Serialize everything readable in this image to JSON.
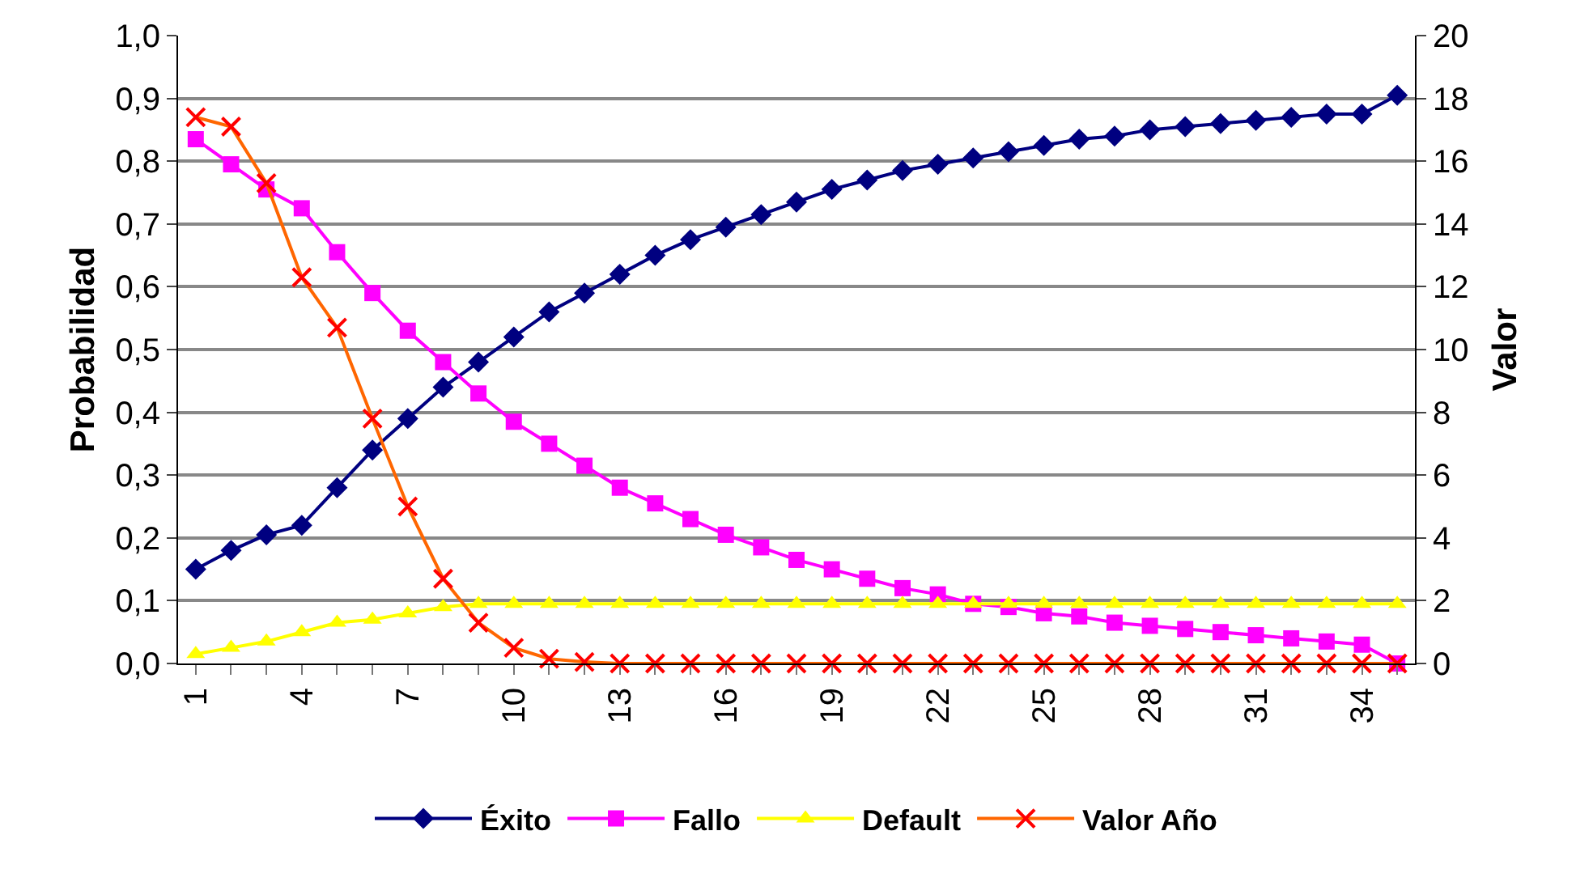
{
  "chart_data": {
    "type": "line",
    "ylabel": "Probabilidad",
    "y2label": "Valor",
    "categories": [
      "1",
      null,
      null,
      "4",
      null,
      null,
      "7",
      null,
      null,
      "10",
      null,
      null,
      "13",
      null,
      null,
      "16",
      null,
      null,
      "19",
      null,
      null,
      "22",
      null,
      null,
      "25",
      null,
      null,
      "28",
      null,
      null,
      "31",
      null,
      null,
      "34",
      null
    ],
    "series": [
      {
        "name": "Éxito",
        "color": "#000080",
        "marker": "diamond",
        "values": [
          0.15,
          0.18,
          0.205,
          0.22,
          0.28,
          0.34,
          0.39,
          0.44,
          0.48,
          0.52,
          0.56,
          0.59,
          0.62,
          0.65,
          0.675,
          0.695,
          0.715,
          0.735,
          0.755,
          0.77,
          0.785,
          0.795,
          0.805,
          0.815,
          0.825,
          0.835,
          0.84,
          0.85,
          0.855,
          0.86,
          0.865,
          0.87,
          0.875,
          0.875,
          0.905
        ]
      },
      {
        "name": "Fallo",
        "color": "#ff00ff",
        "marker": "square",
        "values": [
          0.835,
          0.795,
          0.755,
          0.725,
          0.655,
          0.59,
          0.53,
          0.48,
          0.43,
          0.385,
          0.35,
          0.315,
          0.28,
          0.255,
          0.23,
          0.205,
          0.185,
          0.165,
          0.15,
          0.135,
          0.12,
          0.11,
          0.095,
          0.09,
          0.08,
          0.075,
          0.065,
          0.06,
          0.055,
          0.05,
          0.045,
          0.04,
          0.035,
          0.03,
          0
        ]
      },
      {
        "name": "Default",
        "color": "#ffff00",
        "marker": "triangle",
        "values": [
          0.015,
          0.025,
          0.035,
          0.05,
          0.065,
          0.07,
          0.08,
          0.09,
          0.095,
          0.095,
          0.095,
          0.095,
          0.095,
          0.095,
          0.095,
          0.095,
          0.095,
          0.095,
          0.095,
          0.095,
          0.095,
          0.095,
          0.095,
          0.095,
          0.095,
          0.095,
          0.095,
          0.095,
          0.095,
          0.095,
          0.095,
          0.095,
          0.095,
          0.095,
          0.095
        ]
      },
      {
        "name": "Valor Año",
        "color": "#ff6600",
        "marker": "cross",
        "axis": "y2",
        "values": [
          17.4,
          17.1,
          15.3,
          12.3,
          10.7,
          7.8,
          5.0,
          2.7,
          1.3,
          0.5,
          0.15,
          0.05,
          0,
          0,
          0,
          0,
          0,
          0,
          0,
          0,
          0,
          0,
          0,
          0,
          0,
          0,
          0,
          0,
          0,
          0,
          0,
          0,
          0,
          0,
          0
        ]
      }
    ],
    "ylim": [
      0,
      1
    ],
    "yticks": [
      {
        "value": 0,
        "label": "0,0"
      },
      {
        "value": 0.1,
        "label": "0,1"
      },
      {
        "value": 0.2,
        "label": "0,2"
      },
      {
        "value": 0.3,
        "label": "0,3"
      },
      {
        "value": 0.4,
        "label": "0,4"
      },
      {
        "value": 0.5,
        "label": "0,5"
      },
      {
        "value": 0.6,
        "label": "0,6"
      },
      {
        "value": 0.7,
        "label": "0,7"
      },
      {
        "value": 0.8,
        "label": "0,8"
      },
      {
        "value": 0.9,
        "label": "0,9"
      },
      {
        "value": 1,
        "label": "1,0"
      }
    ],
    "y2lim": [
      0,
      20
    ],
    "y2ticks": [
      0,
      2,
      4,
      6,
      8,
      10,
      12,
      14,
      16,
      18,
      20
    ],
    "grid": "y",
    "legend": "bottom",
    "line_style": "solid"
  }
}
